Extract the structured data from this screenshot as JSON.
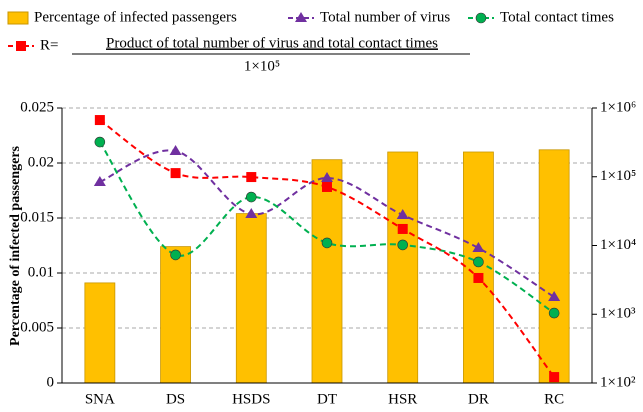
{
  "chart_data": {
    "type": "bar",
    "ylabel": "Percentage of infected passengers",
    "categories": [
      "SNA",
      "DS",
      "HSDS",
      "DT",
      "HSR",
      "DR",
      "RC"
    ],
    "ylim": [
      0,
      0.025
    ],
    "yticks": [
      0,
      0.005,
      0.01,
      0.015,
      0.02,
      0.025
    ],
    "y2lim": [
      100,
      1000000
    ],
    "y2scale": "log",
    "y2ticks": [
      {
        "value": 100,
        "label": "1×10²"
      },
      {
        "value": 1000,
        "label": "1×10³"
      },
      {
        "value": 10000,
        "label": "1×10⁴"
      },
      {
        "value": 100000,
        "label": "1×10⁵"
      },
      {
        "value": 1000000,
        "label": "1×10⁶"
      }
    ],
    "grid": true,
    "series": [
      {
        "name": "Percentage of infected passengers",
        "type": "bar",
        "color": "#FFC000",
        "values": [
          0.0091,
          0.0124,
          0.0154,
          0.0203,
          0.021,
          0.021,
          0.0212
        ]
      },
      {
        "name": "Total number of virus",
        "type": "line",
        "axis": "y2",
        "color": "#7030A0",
        "marker": "triangle",
        "linestyle": "dashed",
        "values": [
          84000,
          237000,
          28700,
          96000,
          27800,
          9200,
          1780
        ]
      },
      {
        "name": "Total contact times",
        "type": "line",
        "axis": "y2",
        "color": "#00B050",
        "marker": "circle",
        "linestyle": "dashed",
        "values": [
          320000,
          7300,
          50700,
          10900,
          10200,
          5760,
          1040
        ]
      },
      {
        "name": "R=",
        "type": "line",
        "axis": "y2",
        "color": "#FF0000",
        "marker": "square",
        "linestyle": "dashed",
        "values": [
          668000,
          113000,
          99000,
          71000,
          17400,
          3370,
          122
        ]
      }
    ],
    "r_formula": {
      "numerator": "Product of total number of virus and total contact times",
      "denominator": "1×10⁵"
    }
  }
}
